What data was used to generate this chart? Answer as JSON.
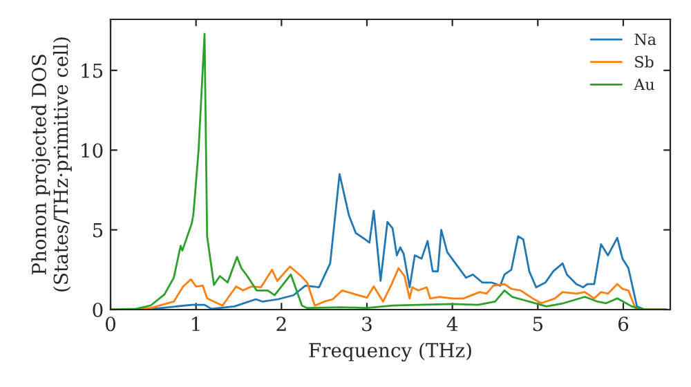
{
  "chart_data": {
    "type": "line",
    "xlabel": "Frequency (THz)",
    "ylabel": "Phonon projected DOS\n(States/THz·primitive cell)",
    "xlim": [
      0,
      6.55
    ],
    "ylim": [
      0,
      18.2
    ],
    "xticks": [
      0,
      1,
      2,
      3,
      4,
      5,
      6
    ],
    "yticks": [
      0,
      5,
      10,
      15
    ],
    "grid": false,
    "legend": "top right",
    "series": [
      {
        "name": "Na",
        "color": "#1f77b4",
        "x": [
          0,
          0.5,
          0.95,
          1.1,
          1.18,
          1.45,
          1.7,
          1.78,
          1.96,
          2.14,
          2.28,
          2.44,
          2.57,
          2.68,
          2.79,
          2.87,
          2.98,
          3.03,
          3.08,
          3.16,
          3.24,
          3.3,
          3.35,
          3.39,
          3.43,
          3.5,
          3.56,
          3.64,
          3.71,
          3.77,
          3.83,
          3.87,
          3.94,
          4.05,
          4.16,
          4.24,
          4.35,
          4.46,
          4.56,
          4.61,
          4.69,
          4.77,
          4.83,
          4.9,
          4.98,
          5.09,
          5.18,
          5.29,
          5.34,
          5.45,
          5.53,
          5.58,
          5.66,
          5.74,
          5.82,
          5.93,
          5.99,
          6.06,
          6.16,
          6.25,
          6.5
        ],
        "values": [
          0,
          0.05,
          0.3,
          0.3,
          0.05,
          0.2,
          0.65,
          0.5,
          0.65,
          0.9,
          1.5,
          1.4,
          2.9,
          8.5,
          5.9,
          4.8,
          4.4,
          4.2,
          6.2,
          1.8,
          5.5,
          5.1,
          3.4,
          3.9,
          3.5,
          1.4,
          3.4,
          3.2,
          4.3,
          2.4,
          2.4,
          5.0,
          3.6,
          2.8,
          2.0,
          2.2,
          1.7,
          1.7,
          1.5,
          2.2,
          2.5,
          4.6,
          4.4,
          2.4,
          1.4,
          1.7,
          2.4,
          2.9,
          2.2,
          1.6,
          1.4,
          1.6,
          1.6,
          4.1,
          3.4,
          4.5,
          3.2,
          2.6,
          0.2,
          0,
          0
        ]
      },
      {
        "name": "Sb",
        "color": "#ff7f0e",
        "x": [
          0,
          0.3,
          0.47,
          0.74,
          0.85,
          0.94,
          1.0,
          1.08,
          1.13,
          1.31,
          1.47,
          1.55,
          1.65,
          1.76,
          1.89,
          1.95,
          2.1,
          2.23,
          2.3,
          2.39,
          2.5,
          2.6,
          2.71,
          2.87,
          3.0,
          3.08,
          3.19,
          3.29,
          3.37,
          3.44,
          3.5,
          3.53,
          3.6,
          3.7,
          3.74,
          3.85,
          4.0,
          4.13,
          4.32,
          4.4,
          4.48,
          4.61,
          4.69,
          4.8,
          4.94,
          5.04,
          5.2,
          5.29,
          5.45,
          5.55,
          5.66,
          5.74,
          5.82,
          5.93,
          5.99,
          6.06,
          6.14,
          6.25,
          6.5
        ],
        "values": [
          0,
          0.02,
          0.1,
          0.5,
          1.45,
          1.9,
          1.45,
          1.5,
          0.7,
          0.25,
          1.45,
          1.2,
          1.45,
          1.4,
          2.5,
          1.8,
          2.7,
          2.1,
          1.7,
          0.25,
          0.5,
          0.65,
          1.2,
          0.95,
          0.75,
          1.45,
          0.5,
          1.6,
          2.6,
          2.1,
          0.7,
          1.4,
          1.2,
          1.4,
          0.7,
          0.8,
          0.7,
          0.7,
          1.1,
          1.0,
          1.5,
          1.6,
          1.3,
          1.2,
          0.7,
          0.4,
          0.7,
          1.1,
          1.0,
          1.1,
          0.7,
          1.1,
          1.0,
          1.6,
          1.3,
          1.2,
          0.1,
          0,
          0
        ]
      },
      {
        "name": "Au",
        "color": "#2ca02c",
        "x": [
          0,
          0.3,
          0.47,
          0.63,
          0.74,
          0.82,
          0.84,
          0.95,
          0.97,
          1.03,
          1.1,
          1.13,
          1.21,
          1.28,
          1.37,
          1.48,
          1.53,
          1.6,
          1.71,
          1.84,
          1.92,
          2.11,
          2.24,
          2.3,
          2.7,
          3.0,
          3.3,
          3.6,
          4.0,
          4.3,
          4.5,
          4.61,
          4.7,
          4.9,
          5.1,
          5.3,
          5.55,
          5.7,
          5.8,
          5.93,
          6.0,
          6.1,
          6.25,
          6.5
        ],
        "values": [
          0,
          0.05,
          0.26,
          0.95,
          2.0,
          4.0,
          3.7,
          5.4,
          6.0,
          10.0,
          17.3,
          4.6,
          1.55,
          2.1,
          1.7,
          3.3,
          2.6,
          2.1,
          1.2,
          1.2,
          0.9,
          2.2,
          0.25,
          0.1,
          0.15,
          0.1,
          0.25,
          0.3,
          0.35,
          0.3,
          0.5,
          1.2,
          0.8,
          0.5,
          0.2,
          0.4,
          0.8,
          0.5,
          0.4,
          0.7,
          0.5,
          0.2,
          0,
          0
        ]
      }
    ]
  }
}
